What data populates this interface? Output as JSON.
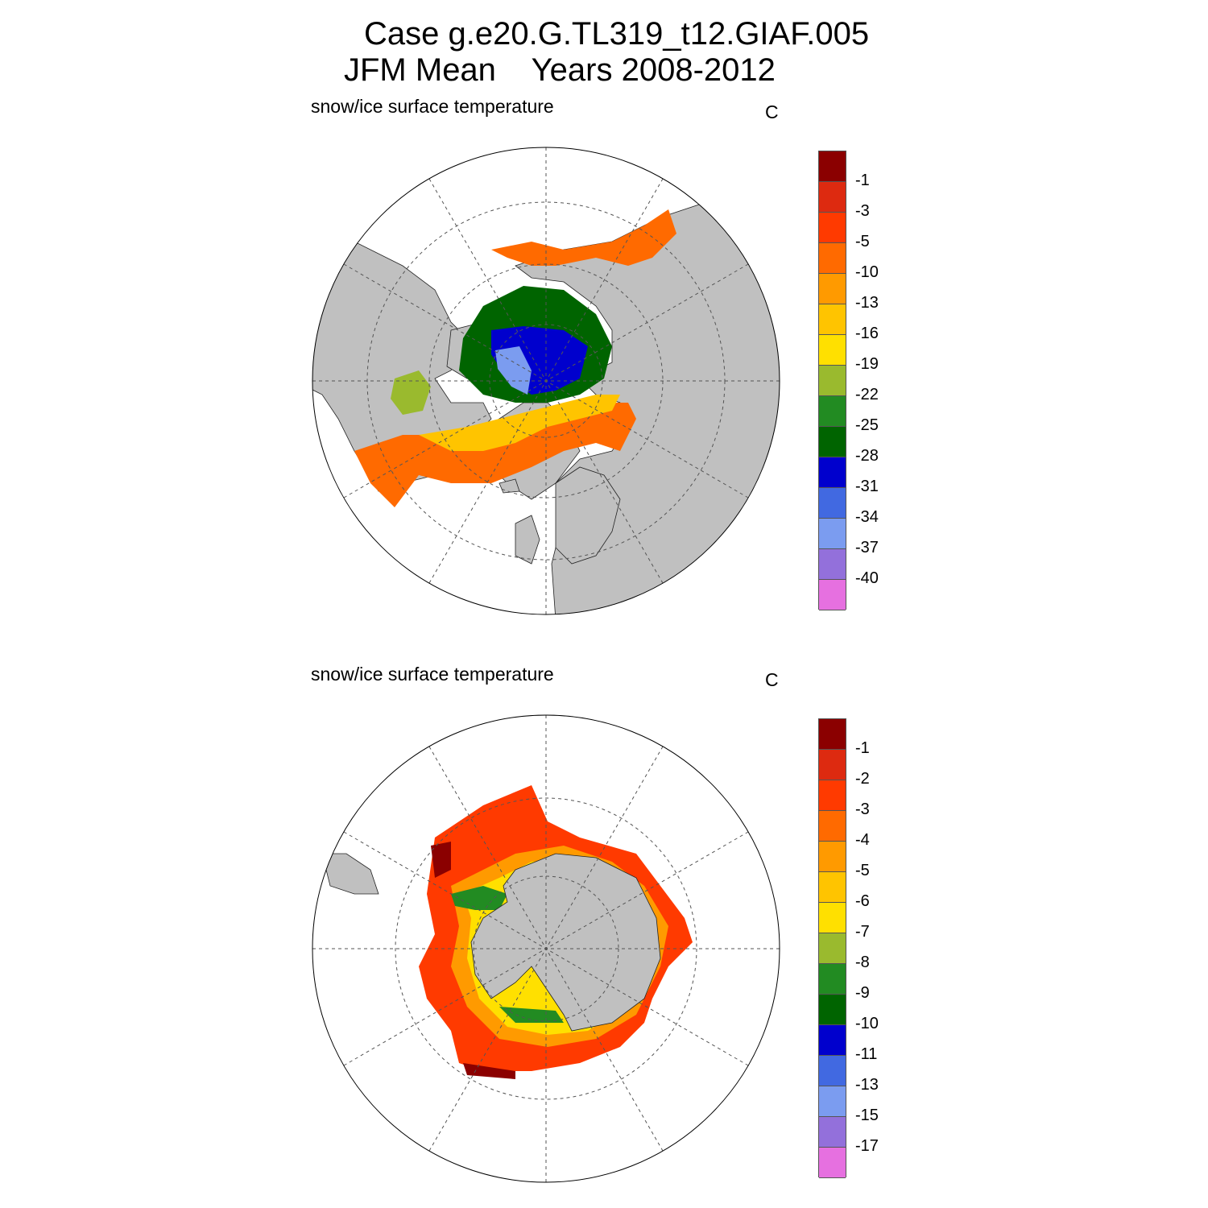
{
  "header": {
    "title_line1": "Case g.e20.G.TL319_t12.GIAF.005",
    "title_line2": "JFM Mean    Years 2008-2012"
  },
  "panels": [
    {
      "label": "snow/ice surface temperature",
      "unit": "C",
      "hemisphere": "Arctic (north polar stereographic)",
      "colorbar_labels": [
        "-1",
        "-3",
        "-5",
        "-10",
        "-13",
        "-16",
        "-19",
        "-22",
        "-25",
        "-28",
        "-31",
        "-34",
        "-37",
        "-40"
      ]
    },
    {
      "label": "snow/ice surface temperature",
      "unit": "C",
      "hemisphere": "Antarctic (south polar stereographic)",
      "colorbar_labels": [
        "-1",
        "-2",
        "-3",
        "-4",
        "-5",
        "-6",
        "-7",
        "-8",
        "-9",
        "-10",
        "-11",
        "-13",
        "-15",
        "-17"
      ]
    }
  ],
  "colors": {
    "palette": [
      "#8b0000",
      "#dd2a10",
      "#ff3a00",
      "#ff6a00",
      "#ff9a00",
      "#ffc400",
      "#ffe000",
      "#9aba2e",
      "#228b22",
      "#006400",
      "#0000cd",
      "#4169e1",
      "#7b9cf0",
      "#9370db",
      "#e670e0"
    ],
    "land": "#c0c0c0",
    "ocean": "#ffffff"
  }
}
